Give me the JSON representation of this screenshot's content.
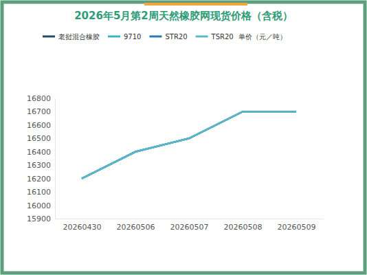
{
  "chart_data": {
    "type": "line",
    "title": "2026年5月第2周天然橡胶网现货价格（含税）",
    "y_label": "单价（元／吨）",
    "categories": [
      "20260430",
      "20260506",
      "20260507",
      "20260508",
      "20260509"
    ],
    "series": [
      {
        "name": "老挝混合橡胶",
        "color": "#1d4f6b",
        "values": [
          16200,
          16400,
          16500,
          16700,
          16700
        ]
      },
      {
        "name": "9710",
        "color": "#3ab4c6",
        "values": [
          16200,
          16400,
          16500,
          16700,
          16700
        ]
      },
      {
        "name": "STR20",
        "color": "#2b78b6",
        "values": [
          16200,
          16400,
          16500,
          16700,
          16700
        ]
      },
      {
        "name": "TSR20",
        "color": "#5bb9c8",
        "values": [
          16200,
          16400,
          16500,
          16700,
          16700
        ]
      }
    ],
    "ylim": [
      15900,
      16800
    ],
    "yticks": [
      15900,
      16000,
      16100,
      16200,
      16300,
      16400,
      16500,
      16600,
      16700,
      16800
    ],
    "grid": false,
    "legend": "top"
  }
}
